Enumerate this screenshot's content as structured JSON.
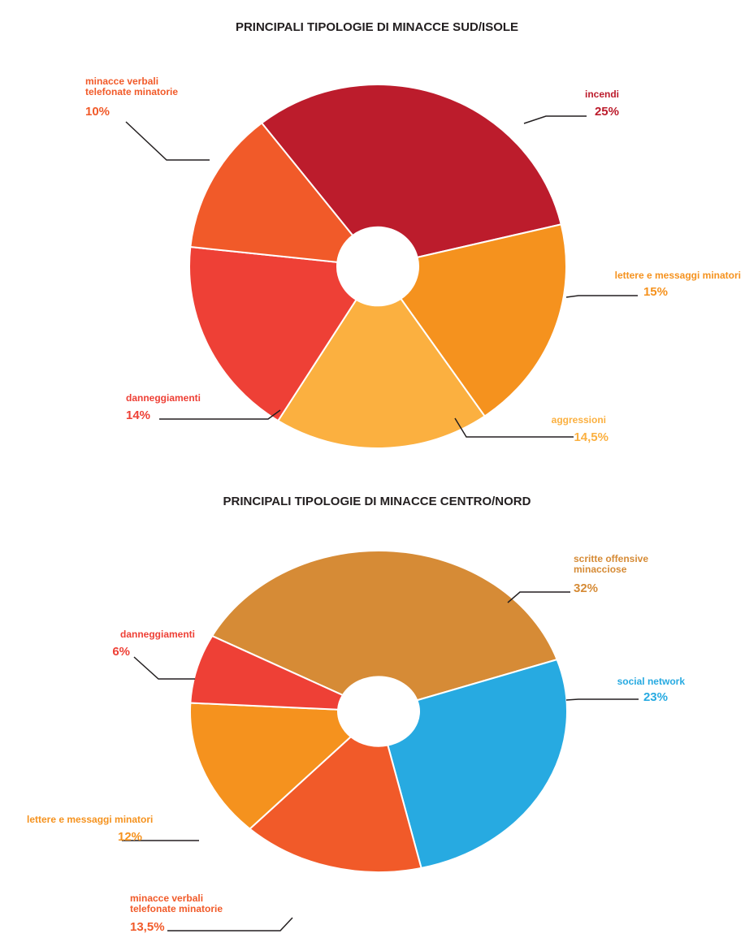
{
  "chart_data": [
    {
      "type": "donut",
      "title": "PRINCIPALI TIPOLOGIE DI MINACCE SUD/ISOLE",
      "categories": [
        "incendi",
        "lettere e messaggi minatori",
        "aggressioni",
        "danneggiamenti",
        "minacce verbali\ntelefonate minatorie"
      ],
      "values": [
        25,
        15,
        14.5,
        14,
        10
      ],
      "value_labels": [
        "25%",
        "15%",
        "14,5%",
        "14%",
        "10%"
      ],
      "colors": [
        "#bc1c2c",
        "#f5921e",
        "#fbb040",
        "#ee4036",
        "#f15a29"
      ]
    },
    {
      "type": "donut",
      "title": "PRINCIPALI TIPOLOGIE DI MINACCE CENTRO/NORD",
      "categories": [
        "scritte offensive\nminacciose",
        "social network",
        "minacce verbali\ntelefonate minatorie",
        "lettere e messaggi minatori",
        "danneggiamenti"
      ],
      "values": [
        32,
        23,
        13.5,
        12,
        6
      ],
      "value_labels": [
        "32%",
        "23%",
        "13,5%",
        "12%",
        "6%"
      ],
      "colors": [
        "#d68b36",
        "#27aae1",
        "#f15a29",
        "#f5921e",
        "#ee4036"
      ]
    }
  ]
}
